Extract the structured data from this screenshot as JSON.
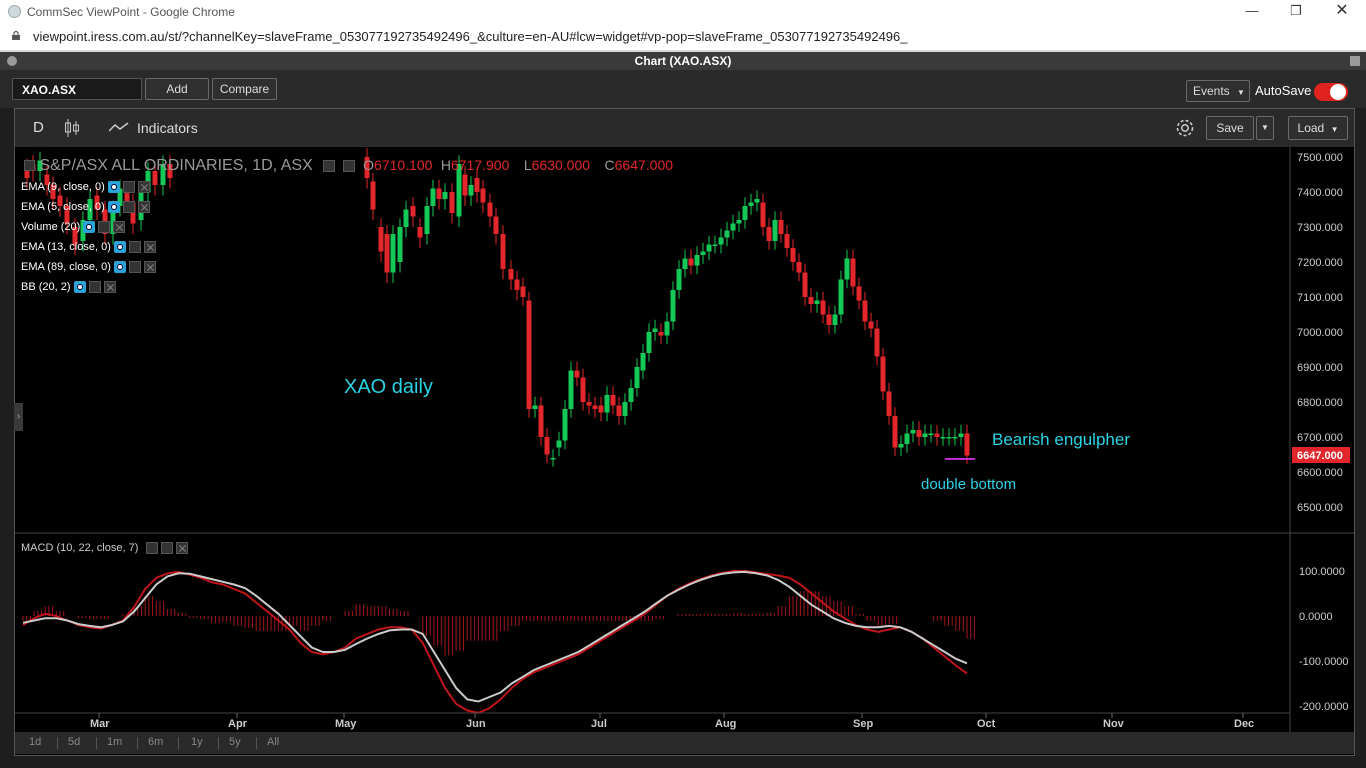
{
  "browser": {
    "window_title": "CommSec ViewPoint - Google Chrome",
    "url": "viewpoint.iress.com.au/st/?channelKey=slaveFrame_053077192735492496_&culture=en-AU#lcw=widget#vp-pop=slaveFrame_053077192735492496_"
  },
  "app": {
    "panel_title": "Chart (XAO.ASX)",
    "symbol": "XAO.ASX",
    "add_label": "Add",
    "compare_label": "Compare",
    "events_label": "Events",
    "autosave_label": "AutoSave",
    "autosave_on": true
  },
  "chart_toolbar": {
    "interval": "D",
    "indicators_label": "Indicators",
    "save_label": "Save",
    "load_label": "Load"
  },
  "header": {
    "title": "S&P/ASX ALL ORDINARIES, 1D, ASX",
    "o_label": "O",
    "open": "6710.100",
    "h_label": "H",
    "high": "6717.900",
    "l_label": "L",
    "low": "6630.000",
    "c_label": "C",
    "close": "6647.000"
  },
  "indicators": [
    {
      "label": "EMA (9, close, 0)"
    },
    {
      "label": "EMA (5, close, 0)"
    },
    {
      "label": "Volume (20)"
    },
    {
      "label": "EMA (13, close, 0)"
    },
    {
      "label": "EMA (89, close, 0)"
    },
    {
      "label": "BB (20, 2)"
    }
  ],
  "annotations": {
    "title": "XAO daily",
    "pattern": "Bearish engulpher",
    "support": "double bottom"
  },
  "price_axis": {
    "ticks": [
      "7500.000",
      "7400.000",
      "7300.000",
      "7200.000",
      "7100.000",
      "7000.000",
      "6900.000",
      "6800.000",
      "6700.000",
      "6600.000",
      "6500.000"
    ],
    "last_price": "6647.000"
  },
  "macd": {
    "label": "MACD (10, 22, close, 7)",
    "ticks": [
      "100.0000",
      "0.0000",
      "-100.0000",
      "-200.0000"
    ]
  },
  "time_axis": {
    "labels": [
      "Mar",
      "Apr",
      "May",
      "Jun",
      "Jul",
      "Aug",
      "Sep",
      "Oct",
      "Nov",
      "Dec"
    ]
  },
  "ranges": [
    "1d",
    "5d",
    "1m",
    "6m",
    "1y",
    "5y",
    "All"
  ],
  "colors": {
    "up": "#14c957",
    "down": "#e3262b",
    "annotation": "#2ad3e6",
    "macd_line": "#c0151b",
    "signal_line": "#cccccc",
    "support_line": "#c02ccf"
  },
  "chart_data": {
    "type": "candlestick",
    "series": [
      {
        "name": "price",
        "x": [
          "2020-06-15",
          "2020-06-16",
          "2020-06-17",
          "2020-06-18",
          "2020-06-19",
          "2020-06-22",
          "2020-06-23",
          "2020-06-24",
          "2020-06-25",
          "2020-06-26",
          "2020-06-29",
          "2020-06-30",
          "2020-07-01",
          "2020-07-02",
          "2020-07-03",
          "2020-07-06",
          "2020-07-07",
          "2020-07-08",
          "2020-07-09",
          "2020-07-10",
          "2020-07-13",
          "2020-07-14",
          "2020-07-15",
          "2020-07-16",
          "2020-07-17",
          "2020-07-20",
          "2020-07-21",
          "2020-07-22",
          "2020-07-23",
          "2020-07-24",
          "2020-07-27",
          "2020-07-28",
          "2020-07-29",
          "2020-07-30",
          "2020-07-31",
          "2020-08-03",
          "2020-08-04",
          "2020-08-05",
          "2020-08-06",
          "2020-08-07",
          "2020-08-10",
          "2020-08-11",
          "2020-08-12",
          "2020-08-13",
          "2020-08-14",
          "2020-08-17",
          "2020-08-18",
          "2020-08-19",
          "2020-08-20",
          "2020-08-21",
          "2020-08-24",
          "2020-08-25",
          "2020-08-26",
          "2020-08-27",
          "2020-08-28",
          "2020-08-31",
          "2020-09-01",
          "2020-09-02",
          "2020-09-03",
          "2020-09-04",
          "2020-09-07",
          "2020-09-08",
          "2020-09-09",
          "2020-09-10",
          "2020-09-11",
          "2020-09-14",
          "2020-09-15",
          "2020-09-16",
          "2020-09-17",
          "2020-09-18",
          "2020-09-21",
          "2020-09-22",
          "2020-09-23",
          "2020-09-24",
          "2020-09-25"
        ],
        "open": [
          7130,
          7090,
          6780,
          6790,
          6700,
          6640,
          6670,
          6690,
          6780,
          6890,
          6870,
          6800,
          6790,
          6790,
          6770,
          6820,
          6790,
          6760,
          6800,
          6840,
          6890,
          6940,
          7000,
          7000,
          6990,
          7030,
          7120,
          7180,
          7210,
          7190,
          7220,
          7230,
          7250,
          7250,
          7270,
          7290,
          7310,
          7320,
          7360,
          7370,
          7370,
          7300,
          7260,
          7320,
          7280,
          7240,
          7200,
          7170,
          7100,
          7080,
          7090,
          7050,
          7020,
          7050,
          7150,
          7210,
          7130,
          7090,
          7030,
          7010,
          6930,
          6830,
          6760,
          6670,
          6680,
          6710,
          6720,
          6700,
          6710,
          6710,
          6700,
          6700,
          6700,
          6700,
          6710
        ],
        "close": [
          7100,
          6780,
          6790,
          6700,
          6650,
          6640,
          6690,
          6780,
          6890,
          6870,
          6800,
          6790,
          6780,
          6770,
          6820,
          6790,
          6760,
          6800,
          6840,
          6900,
          6940,
          7000,
          7010,
          6990,
          7030,
          7120,
          7180,
          7210,
          7190,
          7220,
          7230,
          7250,
          7250,
          7270,
          7290,
          7310,
          7320,
          7360,
          7370,
          7380,
          7300,
          7260,
          7320,
          7280,
          7240,
          7200,
          7170,
          7100,
          7080,
          7090,
          7050,
          7020,
          7050,
          7150,
          7210,
          7130,
          7090,
          7030,
          7010,
          6930,
          6830,
          6760,
          6670,
          6680,
          6710,
          6720,
          6700,
          6710,
          6710,
          6700,
          6700,
          6700,
          6700,
          6710,
          6647
        ]
      },
      {
        "name": "MACD",
        "values": [
          -60,
          -110,
          -160,
          -195,
          -210,
          -215,
          -205,
          -185,
          -160,
          -140,
          -125,
          -115,
          -105,
          -95,
          -85,
          -70,
          -55,
          -40,
          -25,
          -10,
          5,
          25,
          45,
          60,
          72,
          82,
          90,
          96,
          100,
          100,
          97,
          93,
          90,
          85,
          70,
          50,
          30,
          10,
          -5,
          -20,
          -30,
          -35,
          -30,
          -25,
          -35,
          -50,
          -70,
          -90,
          -110,
          -128
        ]
      },
      {
        "name": "signal",
        "values": [
          -40,
          -80,
          -120,
          -160,
          -185,
          -190,
          -180,
          -170,
          -150,
          -135,
          -120,
          -110,
          -100,
          -90,
          -80,
          -65,
          -50,
          -35,
          -20,
          -5,
          10,
          28,
          45,
          58,
          70,
          80,
          88,
          94,
          97,
          98,
          95,
          90,
          80,
          65,
          45,
          25,
          10,
          -5,
          -15,
          -22,
          -25,
          -25,
          -22,
          -25,
          -35,
          -50,
          -65,
          -80,
          -95,
          -105
        ]
      }
    ]
  }
}
